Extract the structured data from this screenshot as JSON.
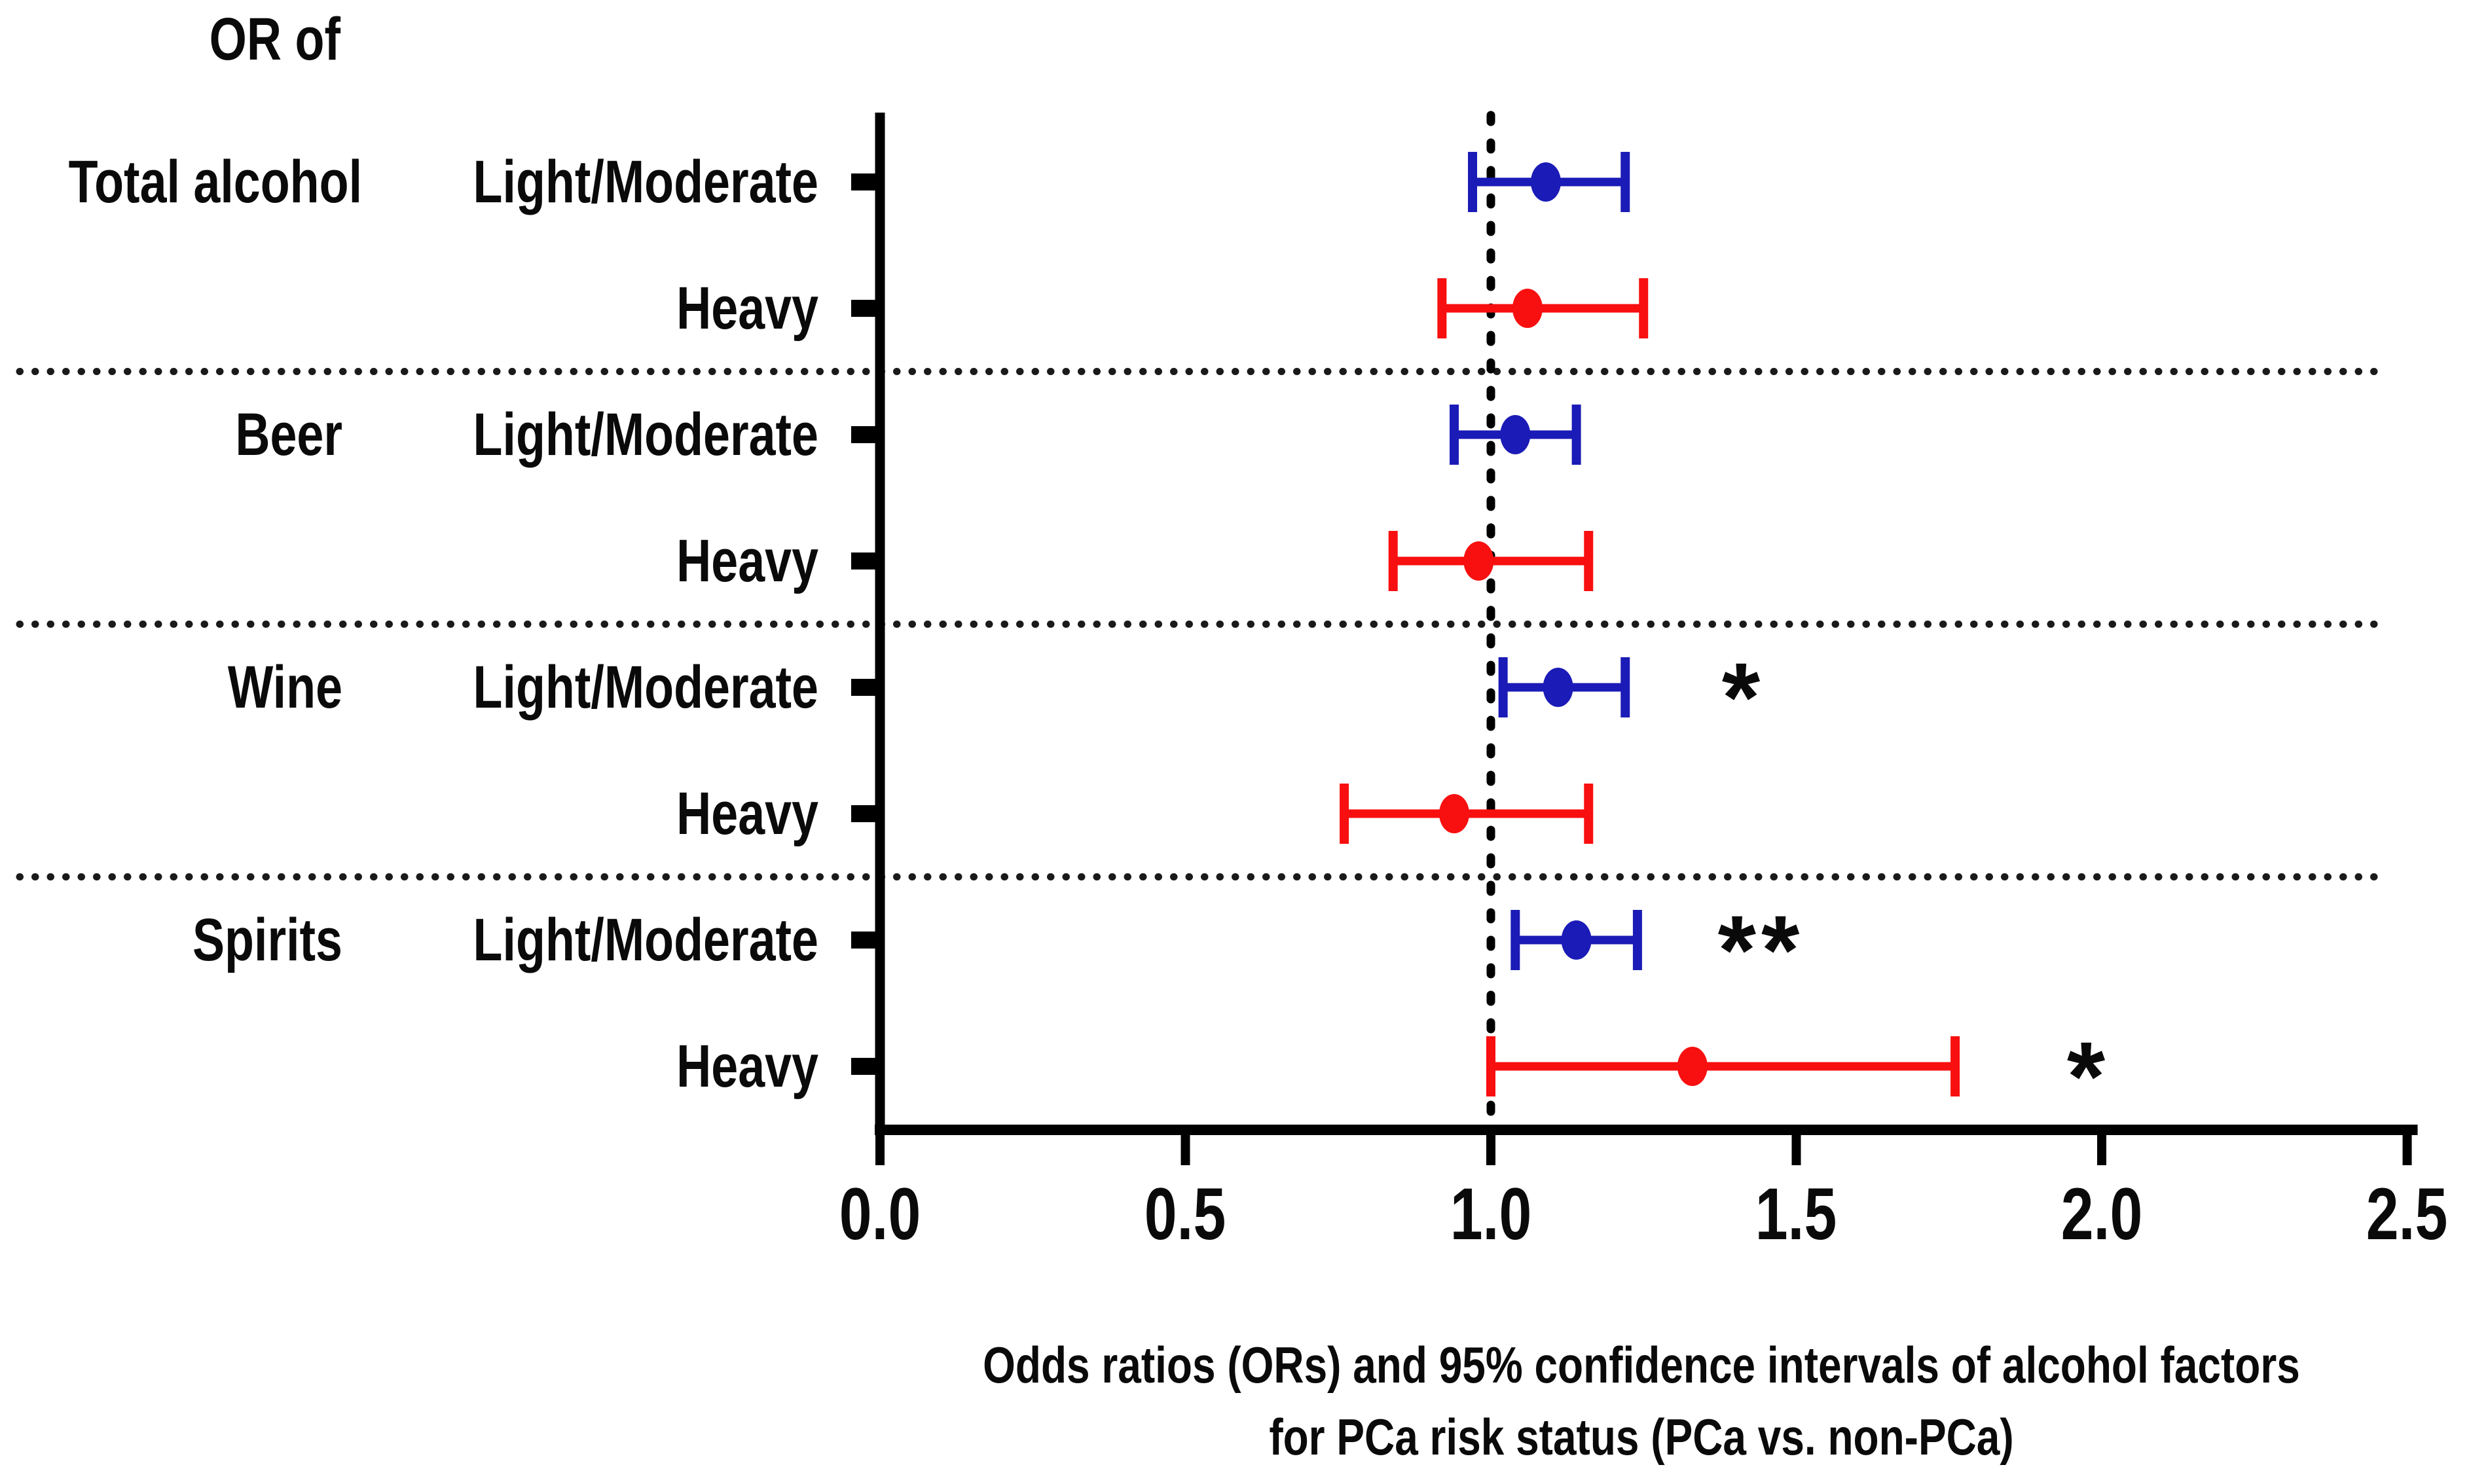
{
  "figure": {
    "background": "#ffffff",
    "or_header": "OR of",
    "caption_line1": "Odds ratios (ORs) and 95% confidence intervals of alcohol factors",
    "caption_line2": "for PCa risk status (PCa vs. non-PCa)"
  },
  "chart_data": {
    "type": "scatter",
    "subtype": "forest-plot-odds-ratios",
    "title": "OR of",
    "xlabel": "Odds ratios (ORs) and 95% confidence intervals of alcohol factors for PCa risk status (PCa vs. non-PCa)",
    "x_axis": {
      "min": 0.0,
      "max": 2.5,
      "ticks": [
        0.0,
        0.5,
        1.0,
        1.5,
        2.0,
        2.5
      ],
      "tick_labels": [
        "0.0",
        "0.5",
        "1.0",
        "1.5",
        "2.0",
        "2.5"
      ]
    },
    "reference_line_x": 1.0,
    "grid": false,
    "legend": "none",
    "colors": {
      "light_moderate": "#1b1bb7",
      "heavy": "#f80f0f",
      "axis": "#000000",
      "dotted": "#1a1a1a"
    },
    "groups": [
      "Total alcohol",
      "Beer",
      "Wine",
      "Spirits"
    ],
    "rows": [
      {
        "group": "Total alcohol",
        "level": "Light/Moderate",
        "or": 1.09,
        "ci_low": 0.97,
        "ci_high": 1.22,
        "color_key": "light_moderate",
        "significance": ""
      },
      {
        "group": "",
        "level": "Heavy",
        "or": 1.06,
        "ci_low": 0.92,
        "ci_high": 1.25,
        "color_key": "heavy",
        "significance": ""
      },
      {
        "group": "Beer",
        "level": "Light/Moderate",
        "or": 1.04,
        "ci_low": 0.94,
        "ci_high": 1.14,
        "color_key": "light_moderate",
        "significance": ""
      },
      {
        "group": "",
        "level": "Heavy",
        "or": 0.98,
        "ci_low": 0.84,
        "ci_high": 1.16,
        "color_key": "heavy",
        "significance": ""
      },
      {
        "group": "Wine",
        "level": "Light/Moderate",
        "or": 1.11,
        "ci_low": 1.02,
        "ci_high": 1.22,
        "color_key": "light_moderate",
        "significance": "*"
      },
      {
        "group": "",
        "level": "Heavy",
        "or": 0.94,
        "ci_low": 0.76,
        "ci_high": 1.16,
        "color_key": "heavy",
        "significance": ""
      },
      {
        "group": "Spirits",
        "level": "Light/Moderate",
        "or": 1.14,
        "ci_low": 1.04,
        "ci_high": 1.24,
        "color_key": "light_moderate",
        "significance": "**"
      },
      {
        "group": "",
        "level": "Heavy",
        "or": 1.33,
        "ci_low": 1.0,
        "ci_high": 1.76,
        "color_key": "heavy",
        "significance": "*"
      }
    ]
  }
}
